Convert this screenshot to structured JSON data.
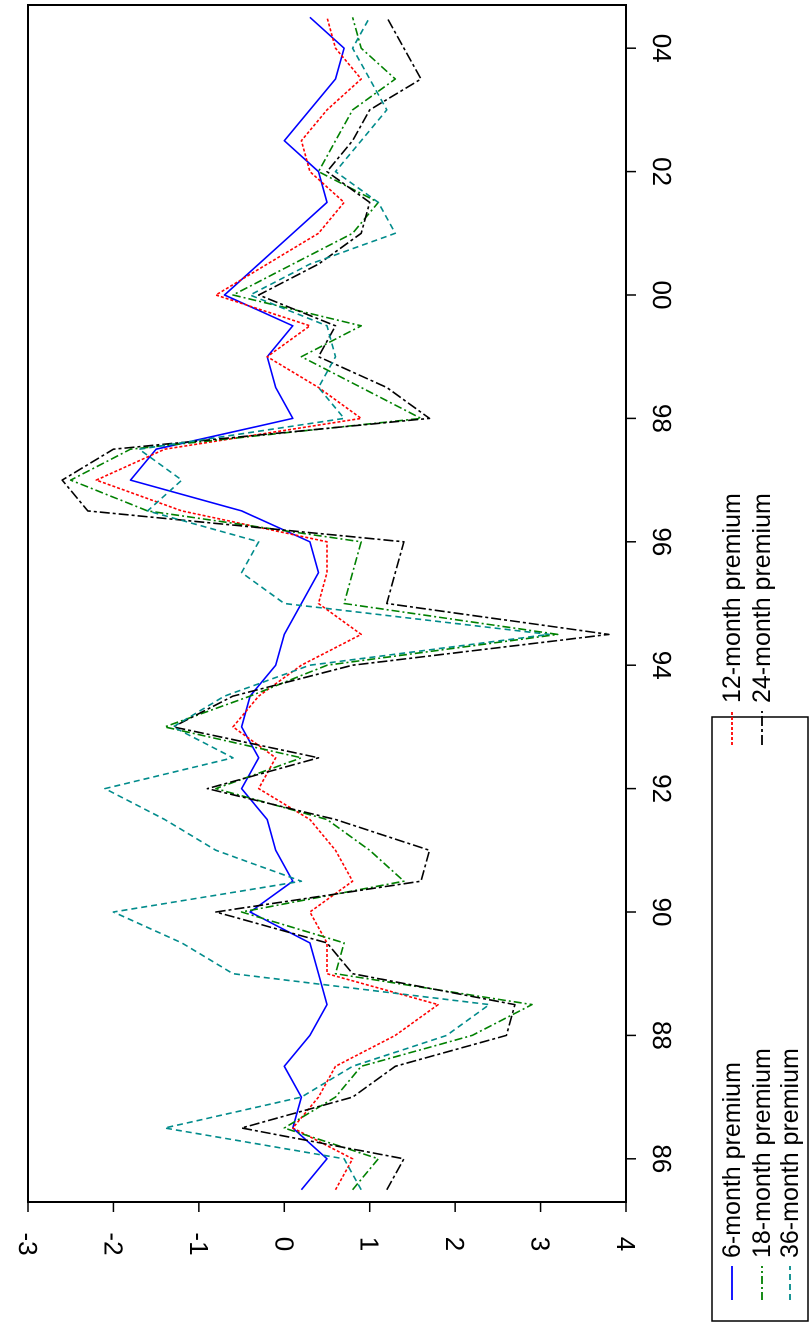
{
  "chart_data": {
    "type": "line",
    "orientation": "rotated-90-clockwise",
    "y_ticks": [
      "4",
      "3",
      "2",
      "1",
      "0",
      "-1",
      "-2",
      "-3"
    ],
    "y_tick_values": [
      4,
      3,
      2,
      1,
      0,
      -1,
      -2,
      -3
    ],
    "ylim": [
      -3,
      4
    ],
    "x_ticks": [
      "86",
      "88",
      "90",
      "92",
      "94",
      "96",
      "98",
      "00",
      "02",
      "04"
    ],
    "x_tick_years": [
      1986,
      1988,
      1990,
      1992,
      1994,
      1996,
      1998,
      2000,
      2002,
      2004
    ],
    "xlim": [
      1985.3,
      2004.7
    ],
    "grid": false,
    "legend_placement": "bottom",
    "series": [
      {
        "name": "6-month premium",
        "color": "#0000ff",
        "dash": "",
        "points": [
          [
            1985.5,
            0.2
          ],
          [
            1986,
            0.5
          ],
          [
            1986.5,
            0.1
          ],
          [
            1987,
            0.2
          ],
          [
            1987.5,
            0.0
          ],
          [
            1988,
            0.3
          ],
          [
            1988.5,
            0.5
          ],
          [
            1989,
            0.4
          ],
          [
            1989.5,
            0.3
          ],
          [
            1990,
            -0.4
          ],
          [
            1990.5,
            0.1
          ],
          [
            1991,
            -0.1
          ],
          [
            1991.5,
            -0.2
          ],
          [
            1992,
            -0.5
          ],
          [
            1992.5,
            -0.3
          ],
          [
            1993,
            -0.5
          ],
          [
            1993.5,
            -0.4
          ],
          [
            1994,
            -0.1
          ],
          [
            1994.5,
            0.0
          ],
          [
            1995,
            0.2
          ],
          [
            1995.5,
            0.4
          ],
          [
            1996,
            0.3
          ],
          [
            1996.5,
            -0.5
          ],
          [
            1997,
            -1.8
          ],
          [
            1997.5,
            -1.5
          ],
          [
            1998,
            0.1
          ],
          [
            1998.5,
            -0.1
          ],
          [
            1999,
            -0.2
          ],
          [
            1999.5,
            0.1
          ],
          [
            2000,
            -0.7
          ],
          [
            2000.5,
            -0.3
          ],
          [
            2001,
            0.1
          ],
          [
            2001.5,
            0.5
          ],
          [
            2002,
            0.4
          ],
          [
            2002.5,
            0.0
          ],
          [
            2003,
            0.3
          ],
          [
            2003.5,
            0.6
          ],
          [
            2004,
            0.7
          ],
          [
            2004.5,
            0.3
          ]
        ]
      },
      {
        "name": "12-month premium",
        "color": "#ff0000",
        "dash": "3,2",
        "points": [
          [
            1985.5,
            0.6
          ],
          [
            1986,
            0.8
          ],
          [
            1986.5,
            0.1
          ],
          [
            1987,
            0.4
          ],
          [
            1987.5,
            0.6
          ],
          [
            1988,
            1.3
          ],
          [
            1988.5,
            1.8
          ],
          [
            1989,
            0.5
          ],
          [
            1989.5,
            0.5
          ],
          [
            1990,
            0.3
          ],
          [
            1990.5,
            0.8
          ],
          [
            1991,
            0.6
          ],
          [
            1991.5,
            0.3
          ],
          [
            1992,
            -0.3
          ],
          [
            1992.5,
            -0.1
          ],
          [
            1993,
            -0.6
          ],
          [
            1993.5,
            -0.3
          ],
          [
            1994,
            0.2
          ],
          [
            1994.5,
            0.9
          ],
          [
            1995,
            0.4
          ],
          [
            1995.5,
            0.5
          ],
          [
            1996,
            0.5
          ],
          [
            1996.5,
            -1.2
          ],
          [
            1997,
            -2.2
          ],
          [
            1997.5,
            -1.4
          ],
          [
            1998,
            0.9
          ],
          [
            1998.5,
            0.4
          ],
          [
            1999,
            -0.2
          ],
          [
            1999.5,
            0.3
          ],
          [
            2000,
            -0.8
          ],
          [
            2000.5,
            -0.2
          ],
          [
            2001,
            0.4
          ],
          [
            2001.5,
            0.7
          ],
          [
            2002,
            0.3
          ],
          [
            2002.5,
            0.2
          ],
          [
            2003,
            0.5
          ],
          [
            2003.5,
            0.9
          ],
          [
            2004,
            0.6
          ],
          [
            2004.5,
            0.5
          ]
        ]
      },
      {
        "name": "18-month premium",
        "color": "#008000",
        "dash": "8,3,2,3",
        "points": [
          [
            1985.5,
            0.8
          ],
          [
            1986,
            1.1
          ],
          [
            1986.5,
            0.0
          ],
          [
            1987,
            0.6
          ],
          [
            1987.5,
            0.9
          ],
          [
            1988,
            2.2
          ],
          [
            1988.5,
            2.9
          ],
          [
            1989,
            0.6
          ],
          [
            1989.5,
            0.7
          ],
          [
            1990,
            -0.5
          ],
          [
            1990.5,
            1.4
          ],
          [
            1991,
            1.0
          ],
          [
            1991.5,
            0.5
          ],
          [
            1992,
            -0.8
          ],
          [
            1992.5,
            0.2
          ],
          [
            1993,
            -1.4
          ],
          [
            1993.5,
            -0.4
          ],
          [
            1994,
            0.5
          ],
          [
            1994.5,
            3.2
          ],
          [
            1995,
            0.7
          ],
          [
            1995.5,
            0.8
          ],
          [
            1996,
            0.9
          ],
          [
            1996.5,
            -1.6
          ],
          [
            1997,
            -2.5
          ],
          [
            1997.5,
            -1.8
          ],
          [
            1998,
            1.6
          ],
          [
            1998.5,
            0.9
          ],
          [
            1999,
            0.2
          ],
          [
            1999.5,
            0.9
          ],
          [
            2000,
            -0.6
          ],
          [
            2000.5,
            0.1
          ],
          [
            2001,
            0.8
          ],
          [
            2001.5,
            1.1
          ],
          [
            2002,
            0.4
          ],
          [
            2002.5,
            0.6
          ],
          [
            2003,
            0.8
          ],
          [
            2003.5,
            1.3
          ],
          [
            2004,
            0.9
          ],
          [
            2004.5,
            0.8
          ]
        ]
      },
      {
        "name": "24-month premium",
        "color": "#000000",
        "dash": "10,3,3,3",
        "points": [
          [
            1985.5,
            1.2
          ],
          [
            1986,
            1.4
          ],
          [
            1986.5,
            -0.5
          ],
          [
            1987,
            0.8
          ],
          [
            1987.5,
            1.3
          ],
          [
            1988,
            2.6
          ],
          [
            1988.5,
            2.7
          ],
          [
            1989,
            0.8
          ],
          [
            1989.5,
            0.5
          ],
          [
            1990,
            -0.8
          ],
          [
            1990.5,
            1.6
          ],
          [
            1991,
            1.7
          ],
          [
            1991.5,
            0.6
          ],
          [
            1992,
            -0.9
          ],
          [
            1992.5,
            0.4
          ],
          [
            1993,
            -1.3
          ],
          [
            1993.5,
            -0.6
          ],
          [
            1994,
            0.8
          ],
          [
            1994.5,
            3.8
          ],
          [
            1995,
            1.2
          ],
          [
            1995.5,
            1.3
          ],
          [
            1996,
            1.4
          ],
          [
            1996.5,
            -2.3
          ],
          [
            1997,
            -2.6
          ],
          [
            1997.5,
            -2.0
          ],
          [
            1998,
            1.7
          ],
          [
            1998.5,
            1.2
          ],
          [
            1999,
            0.4
          ],
          [
            1999.5,
            0.6
          ],
          [
            2000,
            -0.3
          ],
          [
            2000.5,
            0.4
          ],
          [
            2001,
            0.9
          ],
          [
            2001.5,
            1.0
          ],
          [
            2002,
            0.5
          ],
          [
            2002.5,
            0.8
          ],
          [
            2003,
            1.0
          ],
          [
            2003.5,
            1.6
          ],
          [
            2004,
            1.4
          ],
          [
            2004.5,
            1.2
          ]
        ]
      },
      {
        "name": "36-month premium",
        "color": "#008b8b",
        "dash": "6,4",
        "points": [
          [
            1985.5,
            0.9
          ],
          [
            1986,
            0.7
          ],
          [
            1986.5,
            -1.4
          ],
          [
            1987,
            0.2
          ],
          [
            1987.5,
            0.8
          ],
          [
            1988,
            1.9
          ],
          [
            1988.5,
            2.4
          ],
          [
            1989,
            -0.6
          ],
          [
            1989.5,
            -1.2
          ],
          [
            1990,
            -2.0
          ],
          [
            1990.5,
            0.2
          ],
          [
            1991,
            -0.8
          ],
          [
            1991.5,
            -1.4
          ],
          [
            1992,
            -2.1
          ],
          [
            1992.5,
            -0.6
          ],
          [
            1993,
            -1.3
          ],
          [
            1993.5,
            -0.7
          ],
          [
            1994,
            0.3
          ],
          [
            1994.5,
            3.1
          ],
          [
            1995,
            0.0
          ],
          [
            1995.5,
            -0.5
          ],
          [
            1996,
            -0.3
          ],
          [
            1996.5,
            -1.6
          ],
          [
            1997,
            -1.2
          ],
          [
            1997.5,
            -1.7
          ],
          [
            1998,
            0.7
          ],
          [
            1998.5,
            0.4
          ],
          [
            1999,
            0.6
          ],
          [
            1999.5,
            0.5
          ],
          [
            2000,
            -0.4
          ],
          [
            2000.5,
            0.3
          ],
          [
            2001,
            1.3
          ],
          [
            2001.5,
            1.1
          ],
          [
            2002,
            0.6
          ],
          [
            2002.5,
            0.9
          ],
          [
            2003,
            1.2
          ],
          [
            2003.5,
            1.0
          ],
          [
            2004,
            0.8
          ],
          [
            2004.5,
            1.0
          ]
        ]
      }
    ]
  }
}
